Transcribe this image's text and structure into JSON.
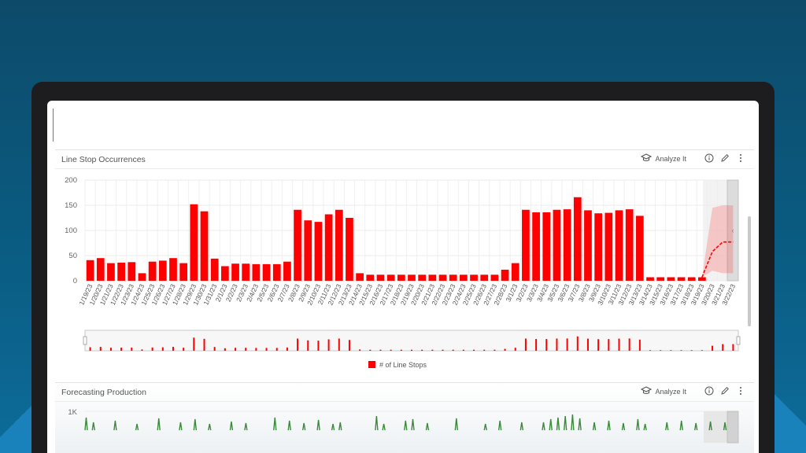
{
  "panels": [
    {
      "title": "Line Stop Occurrences",
      "analyze_label": "Analyze It"
    },
    {
      "title": "Forecasting Production",
      "analyze_label": "Analyze It"
    }
  ],
  "chart_data": [
    {
      "type": "bar",
      "title": "",
      "ylim": [
        0,
        200
      ],
      "yticks": [
        "200",
        "150",
        "100",
        "50",
        "0"
      ],
      "categories": [
        "1/19/23",
        "1/20/23",
        "1/21/23",
        "1/22/23",
        "1/23/23",
        "1/24/23",
        "1/25/23",
        "1/26/23",
        "1/27/23",
        "1/28/23",
        "1/29/23",
        "1/30/23",
        "1/31/23",
        "2/1/23",
        "2/2/23",
        "2/3/23",
        "2/4/23",
        "2/5/23",
        "2/6/23",
        "2/7/23",
        "2/8/23",
        "2/9/23",
        "2/10/23",
        "2/11/23",
        "2/12/23",
        "2/13/23",
        "2/14/23",
        "2/15/23",
        "2/16/23",
        "2/17/23",
        "2/18/23",
        "2/19/23",
        "2/20/23",
        "2/21/23",
        "2/22/23",
        "2/23/23",
        "2/24/23",
        "2/25/23",
        "2/26/23",
        "2/27/23",
        "2/28/23",
        "3/1/23",
        "3/2/23",
        "3/3/23",
        "3/4/23",
        "3/5/23",
        "3/6/23",
        "3/7/23",
        "3/8/23",
        "3/9/23",
        "3/10/23",
        "3/11/23",
        "3/12/23",
        "3/13/23",
        "3/14/23",
        "3/15/23",
        "3/16/23",
        "3/17/23",
        "3/18/23",
        "3/19/23",
        "3/20/23",
        "3/21/23",
        "3/22/23"
      ],
      "series": [
        {
          "name": "# of Line Stops",
          "color": "#ff0000",
          "values": [
            41,
            45,
            35,
            36,
            37,
            15,
            38,
            40,
            45,
            35,
            152,
            138,
            44,
            29,
            34,
            34,
            33,
            33,
            33,
            38,
            141,
            120,
            117,
            132,
            141,
            125,
            15,
            12,
            12,
            12,
            12,
            12,
            12,
            12,
            12,
            12,
            12,
            12,
            12,
            12,
            22,
            35,
            141,
            136,
            136,
            141,
            142,
            166,
            140,
            134,
            135,
            140,
            142,
            129,
            7,
            7,
            7,
            7,
            7,
            7,
            null,
            null,
            null
          ]
        }
      ],
      "forecast": {
        "start_category": "3/19/23",
        "values": [
          7,
          58,
          77,
          77
        ],
        "band_upper": [
          7,
          145,
          150,
          150
        ],
        "band_lower": [
          7,
          20,
          15,
          15
        ],
        "color": "#ff0000"
      },
      "legend": {
        "position": "bottom-center",
        "label": "# of Line Stops"
      }
    },
    {
      "type": "bar",
      "title": "",
      "yticks": [
        "1K"
      ],
      "series": [
        {
          "name": "",
          "color": "#3a8a3a"
        }
      ]
    }
  ]
}
